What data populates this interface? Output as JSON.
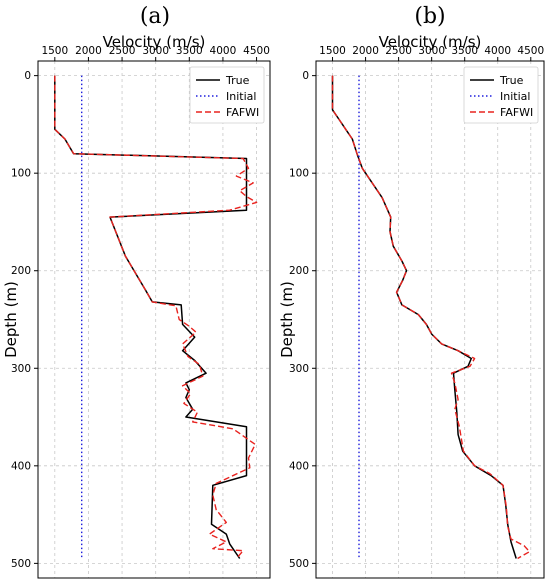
{
  "chart_data": [
    {
      "type": "line",
      "panel_label": "(a)",
      "xlabel": "Velocity (m/s)",
      "ylabel": "Depth (m)",
      "x_axis_position": "top",
      "y_inverted": true,
      "xlim": [
        1250,
        4700
      ],
      "ylim": [
        -15,
        515
      ],
      "xticks": [
        1500,
        2000,
        2500,
        3000,
        3500,
        4000,
        4500
      ],
      "yticks": [
        0,
        100,
        200,
        300,
        400,
        500
      ],
      "grid": true,
      "legend_position": "top-right",
      "series": [
        {
          "name": "True",
          "color": "#000000",
          "style": "solid",
          "points": [
            [
              1500,
              0
            ],
            [
              1500,
              55
            ],
            [
              1650,
              65
            ],
            [
              1780,
              80
            ],
            [
              4350,
              85
            ],
            [
              4350,
              138
            ],
            [
              2320,
              145
            ],
            [
              2550,
              185
            ],
            [
              2850,
              220
            ],
            [
              2950,
              232
            ],
            [
              3380,
              235
            ],
            [
              3400,
              255
            ],
            [
              3580,
              268
            ],
            [
              3400,
              282
            ],
            [
              3580,
              292
            ],
            [
              3750,
              305
            ],
            [
              3450,
              315
            ],
            [
              3500,
              322
            ],
            [
              3450,
              330
            ],
            [
              3550,
              342
            ],
            [
              3450,
              350
            ],
            [
              4350,
              360
            ],
            [
              4350,
              410
            ],
            [
              3850,
              420
            ],
            [
              3830,
              460
            ],
            [
              4050,
              470
            ],
            [
              4100,
              480
            ],
            [
              4250,
              495
            ]
          ]
        },
        {
          "name": "Initial",
          "color": "#1f1fdd",
          "style": "dotted",
          "points": [
            [
              1900,
              0
            ],
            [
              1900,
              495
            ]
          ]
        },
        {
          "name": "FAFWI",
          "color": "#e8231f",
          "style": "dashed",
          "points": [
            [
              1500,
              0
            ],
            [
              1500,
              55
            ],
            [
              1650,
              65
            ],
            [
              1780,
              80
            ],
            [
              4300,
              85
            ],
            [
              4380,
              95
            ],
            [
              4200,
              103
            ],
            [
              4450,
              110
            ],
            [
              4250,
              118
            ],
            [
              4350,
              124
            ],
            [
              4500,
              130
            ],
            [
              4100,
              138
            ],
            [
              2320,
              145
            ],
            [
              2550,
              185
            ],
            [
              2850,
              220
            ],
            [
              2950,
              232
            ],
            [
              3300,
              236
            ],
            [
              3350,
              250
            ],
            [
              3500,
              257
            ],
            [
              3600,
              263
            ],
            [
              3400,
              275
            ],
            [
              3480,
              288
            ],
            [
              3650,
              296
            ],
            [
              3700,
              308
            ],
            [
              3400,
              318
            ],
            [
              3520,
              326
            ],
            [
              3420,
              336
            ],
            [
              3620,
              345
            ],
            [
              3550,
              355
            ],
            [
              4150,
              362
            ],
            [
              4480,
              378
            ],
            [
              4380,
              392
            ],
            [
              4400,
              402
            ],
            [
              3900,
              418
            ],
            [
              3850,
              430
            ],
            [
              3900,
              445
            ],
            [
              4050,
              458
            ],
            [
              3800,
              470
            ],
            [
              4050,
              478
            ],
            [
              3850,
              485
            ],
            [
              4300,
              487
            ],
            [
              4200,
              495
            ]
          ]
        }
      ]
    },
    {
      "type": "line",
      "panel_label": "(b)",
      "xlabel": "Velocity (m/s)",
      "ylabel": "Depth (m)",
      "x_axis_position": "top",
      "y_inverted": true,
      "xlim": [
        1250,
        4700
      ],
      "ylim": [
        -15,
        515
      ],
      "xticks": [
        1500,
        2000,
        2500,
        3000,
        3500,
        4000,
        4500
      ],
      "yticks": [
        0,
        100,
        200,
        300,
        400,
        500
      ],
      "grid": true,
      "legend_position": "top-right",
      "series": [
        {
          "name": "True",
          "color": "#000000",
          "style": "solid",
          "points": [
            [
              1500,
              0
            ],
            [
              1500,
              35
            ],
            [
              1600,
              45
            ],
            [
              1700,
              55
            ],
            [
              1800,
              65
            ],
            [
              1870,
              80
            ],
            [
              1950,
              95
            ],
            [
              2100,
              110
            ],
            [
              2250,
              125
            ],
            [
              2380,
              145
            ],
            [
              2370,
              160
            ],
            [
              2420,
              175
            ],
            [
              2550,
              190
            ],
            [
              2620,
              200
            ],
            [
              2560,
              210
            ],
            [
              2470,
              222
            ],
            [
              2550,
              235
            ],
            [
              2800,
              245
            ],
            [
              2920,
              255
            ],
            [
              3000,
              265
            ],
            [
              3150,
              275
            ],
            [
              3400,
              282
            ],
            [
              3600,
              290
            ],
            [
              3550,
              298
            ],
            [
              3330,
              305
            ],
            [
              3350,
              322
            ],
            [
              3380,
              345
            ],
            [
              3400,
              368
            ],
            [
              3470,
              385
            ],
            [
              3650,
              400
            ],
            [
              3900,
              410
            ],
            [
              4080,
              420
            ],
            [
              4120,
              440
            ],
            [
              4150,
              460
            ],
            [
              4200,
              478
            ],
            [
              4280,
              495
            ]
          ]
        },
        {
          "name": "Initial",
          "color": "#1f1fdd",
          "style": "dotted",
          "points": [
            [
              1900,
              0
            ],
            [
              1900,
              495
            ]
          ]
        },
        {
          "name": "FAFWI",
          "color": "#e8231f",
          "style": "dashed",
          "points": [
            [
              1500,
              0
            ],
            [
              1500,
              35
            ],
            [
              1600,
              45
            ],
            [
              1700,
              55
            ],
            [
              1800,
              65
            ],
            [
              1870,
              80
            ],
            [
              1950,
              95
            ],
            [
              2100,
              110
            ],
            [
              2250,
              125
            ],
            [
              2380,
              145
            ],
            [
              2370,
              160
            ],
            [
              2420,
              175
            ],
            [
              2550,
              190
            ],
            [
              2620,
              200
            ],
            [
              2560,
              210
            ],
            [
              2470,
              222
            ],
            [
              2550,
              235
            ],
            [
              2800,
              245
            ],
            [
              2920,
              255
            ],
            [
              3000,
              265
            ],
            [
              3150,
              275
            ],
            [
              3400,
              282
            ],
            [
              3650,
              290
            ],
            [
              3580,
              298
            ],
            [
              3300,
              305
            ],
            [
              3350,
              315
            ],
            [
              3400,
              332
            ],
            [
              3350,
              342
            ],
            [
              3420,
              360
            ],
            [
              3480,
              385
            ],
            [
              3650,
              400
            ],
            [
              3880,
              408
            ],
            [
              4080,
              420
            ],
            [
              4130,
              442
            ],
            [
              4150,
              462
            ],
            [
              4200,
              475
            ],
            [
              4400,
              482
            ],
            [
              4480,
              488
            ],
            [
              4300,
              495
            ]
          ]
        }
      ]
    }
  ]
}
